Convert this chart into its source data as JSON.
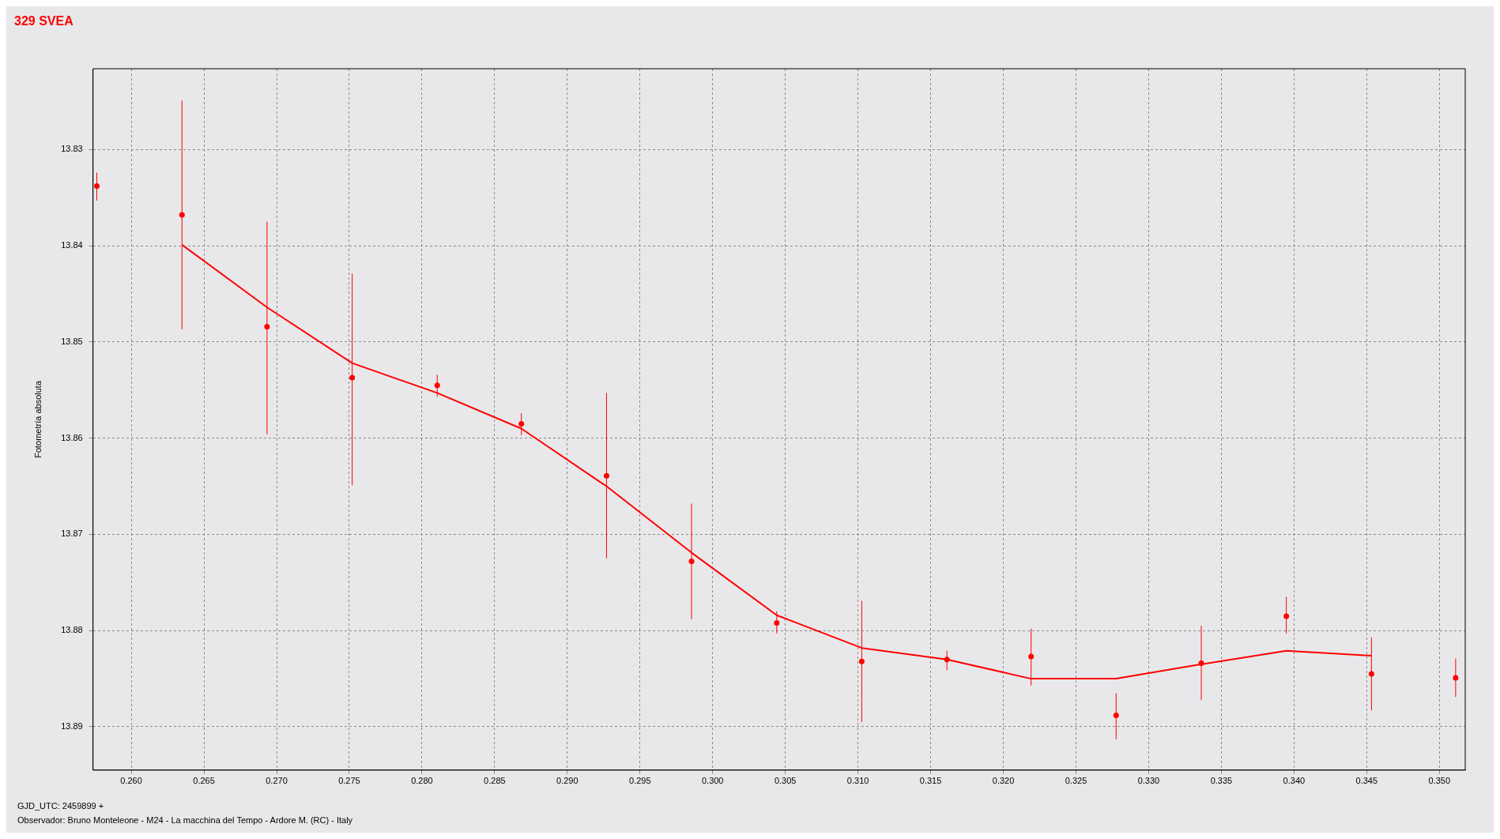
{
  "chart_data": {
    "type": "scatter",
    "title": "329 SVEA",
    "ylabel": "Fotometría absoluta",
    "annotations": [
      "GJD_UTC: 2459899 +",
      "Observador: Bruno Monteleone - M24 - La macchina del Tempo - Ardore M. (RC) - Italy"
    ],
    "xlim": [
      0.25737,
      0.35178
    ],
    "xticks": [
      {
        "value": 0.26,
        "label": "0.260"
      },
      {
        "value": 0.265,
        "label": "0.265"
      },
      {
        "value": 0.27,
        "label": "0.270"
      },
      {
        "value": 0.275,
        "label": "0.275"
      },
      {
        "value": 0.28,
        "label": "0.280"
      },
      {
        "value": 0.285,
        "label": "0.285"
      },
      {
        "value": 0.29,
        "label": "0.290"
      },
      {
        "value": 0.295,
        "label": "0.295"
      },
      {
        "value": 0.3,
        "label": "0.300"
      },
      {
        "value": 0.305,
        "label": "0.305"
      },
      {
        "value": 0.31,
        "label": "0.310"
      },
      {
        "value": 0.315,
        "label": "0.315"
      },
      {
        "value": 0.32,
        "label": "0.320"
      },
      {
        "value": 0.325,
        "label": "0.325"
      },
      {
        "value": 0.33,
        "label": "0.330"
      },
      {
        "value": 0.335,
        "label": "0.335"
      },
      {
        "value": 0.34,
        "label": "0.340"
      },
      {
        "value": 0.345,
        "label": "0.345"
      },
      {
        "value": 0.35,
        "label": "0.350"
      }
    ],
    "ylim": [
      13.8945,
      13.8216
    ],
    "yticks": [
      13.83,
      13.84,
      13.85,
      13.86,
      13.87,
      13.88,
      13.89
    ],
    "grid": true,
    "legend": false,
    "series": [
      {
        "type": "scatter",
        "color": "#ff0000",
        "marker": "circle",
        "x": [
          0.25763,
          0.26349,
          0.26934,
          0.2752,
          0.28105,
          0.28684,
          0.2927,
          0.29855,
          0.30441,
          0.31026,
          0.31612,
          0.32191,
          0.32776,
          0.33362,
          0.33947,
          0.34533,
          0.35112
        ],
        "values": [
          13.8338,
          13.8368,
          13.8484,
          13.8537,
          13.8545,
          13.8585,
          13.8639,
          13.8728,
          13.8792,
          13.8832,
          13.883,
          13.8827,
          13.8888,
          13.8834,
          13.8785,
          13.8845,
          13.8849
        ],
        "errors": [
          [
            13.8324,
            13.8353
          ],
          [
            13.8249,
            13.8487
          ],
          [
            13.8375,
            13.8596
          ],
          [
            13.8429,
            13.8649
          ],
          [
            13.8534,
            13.8557
          ],
          [
            13.8574,
            13.8597
          ],
          [
            13.8553,
            13.8725
          ],
          [
            13.8668,
            13.8788
          ],
          [
            13.878,
            13.8803
          ],
          [
            13.8769,
            13.8895
          ],
          [
            13.8821,
            13.8841
          ],
          [
            13.8798,
            13.8857
          ],
          [
            13.8865,
            13.8913
          ],
          [
            13.8795,
            13.8872
          ],
          [
            13.8765,
            13.8803
          ],
          [
            13.8807,
            13.8883
          ],
          [
            13.8829,
            13.8869
          ]
        ]
      },
      {
        "type": "line",
        "color": "#ff0000",
        "marker": "none",
        "line_style": "solid",
        "x": [
          0.26349,
          0.26934,
          0.2752,
          0.28105,
          0.28684,
          0.2927,
          0.29855,
          0.30441,
          0.31026,
          0.31612,
          0.32191,
          0.32776,
          0.33362,
          0.33947,
          0.34533
        ],
        "values": [
          13.8399,
          13.8464,
          13.8522,
          13.8553,
          13.859,
          13.865,
          13.8719,
          13.8784,
          13.8818,
          13.883,
          13.885,
          13.885,
          13.8835,
          13.8821,
          13.8826
        ]
      }
    ]
  }
}
